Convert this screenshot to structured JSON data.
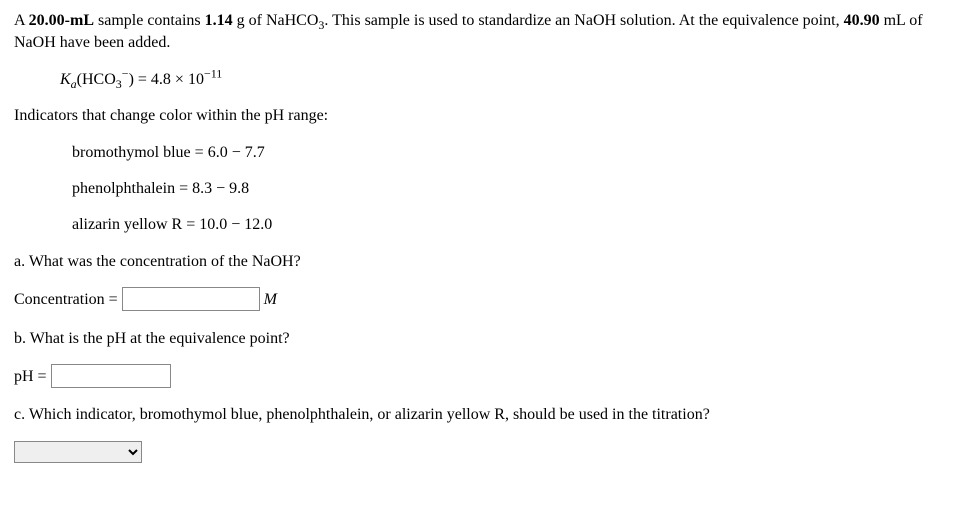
{
  "problem": {
    "line1_pre": "A ",
    "vol_sample": "20.00-mL",
    "line1_mid1": " sample contains ",
    "mass": "1.14",
    "line1_mid2": " g of ",
    "compound_html": "NaHCO",
    "compound_sub": "3",
    "line1_mid3": ". This sample is used to standardize an ",
    "naoh": "NaOH",
    "line1_end": " solution. At the equivalence point, ",
    "vol_naoh": "40.90",
    "line2_end": " mL of NaOH have been added."
  },
  "ka": {
    "label_K": "K",
    "label_a": "a",
    "species_pre": "(HCO",
    "species_sub": "3",
    "species_sup": "−",
    "species_post": ")",
    "eq": " = 4.8 × 10",
    "exp": "−11"
  },
  "indicators_intro": "Indicators that change color within the pH range:",
  "indicators": [
    {
      "name": "bromothymol blue",
      "range": "6.0 − 7.7"
    },
    {
      "name": "phenolphthalein",
      "range": "8.3 − 9.8"
    },
    {
      "name": "alizarin yellow R",
      "range": "10.0 − 12.0"
    }
  ],
  "qa": {
    "prompt": "a. What was the concentration of the NaOH?",
    "label": "Concentration =",
    "unit": "M"
  },
  "qb": {
    "prompt": "b. What is the pH at the equivalence point?",
    "label": "pH ="
  },
  "qc": {
    "prompt": "c. Which indicator, bromothymol blue, phenolphthalein, or alizarin yellow R, should be used in the titration?"
  }
}
